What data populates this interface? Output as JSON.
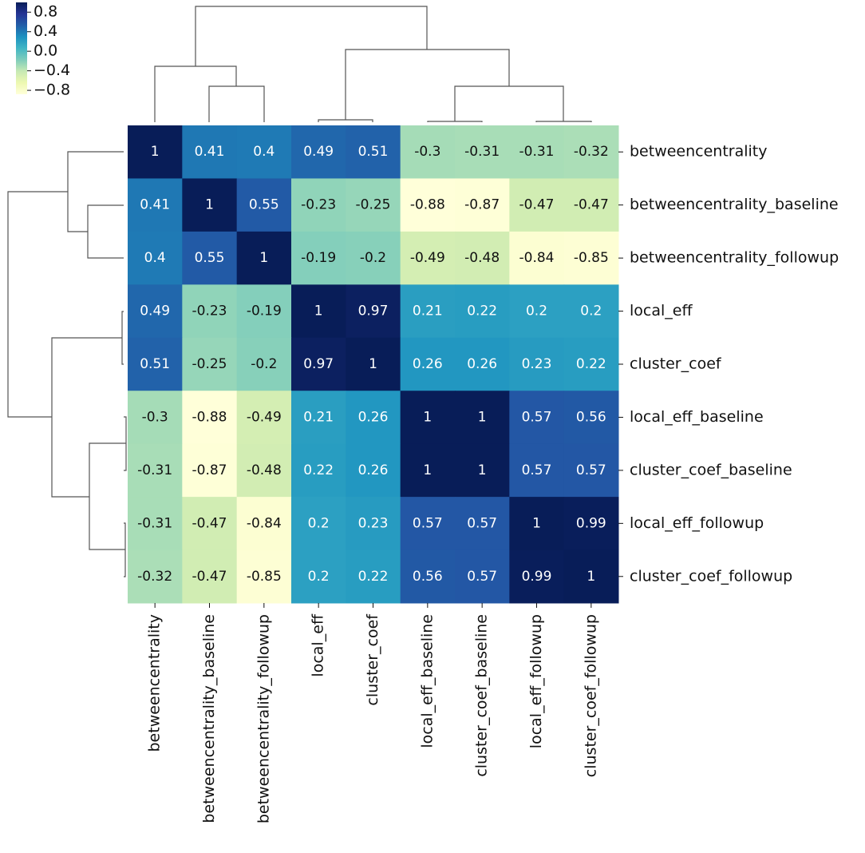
{
  "chart_data": {
    "type": "heatmap",
    "colormap": "YlGnBu",
    "categories": [
      "betweencentrality",
      "betweencentrality_baseline",
      "betweencentrality_followup",
      "local_eff",
      "cluster_coef",
      "local_eff_baseline",
      "cluster_coef_baseline",
      "local_eff_followup",
      "cluster_coef_followup"
    ],
    "values": [
      [
        1,
        0.41,
        0.4,
        0.49,
        0.51,
        -0.3,
        -0.31,
        -0.31,
        -0.32
      ],
      [
        0.41,
        1,
        0.55,
        -0.23,
        -0.25,
        -0.88,
        -0.87,
        -0.47,
        -0.47
      ],
      [
        0.4,
        0.55,
        1,
        -0.19,
        -0.2,
        -0.49,
        -0.48,
        -0.84,
        -0.85
      ],
      [
        0.49,
        -0.23,
        -0.19,
        1,
        0.97,
        0.21,
        0.22,
        0.2,
        0.2
      ],
      [
        0.51,
        -0.25,
        -0.2,
        0.97,
        1,
        0.26,
        0.26,
        0.23,
        0.22
      ],
      [
        -0.3,
        -0.88,
        -0.49,
        0.21,
        0.26,
        1,
        1,
        0.57,
        0.56
      ],
      [
        -0.31,
        -0.87,
        -0.48,
        0.22,
        0.26,
        1,
        1,
        0.57,
        0.57
      ],
      [
        -0.31,
        -0.47,
        -0.84,
        0.2,
        0.23,
        0.57,
        0.57,
        1,
        0.99
      ],
      [
        -0.32,
        -0.47,
        -0.85,
        0.2,
        0.22,
        0.56,
        0.57,
        0.99,
        1
      ]
    ],
    "clim": [
      -0.88,
      1
    ],
    "cticks": [
      0.8,
      0.4,
      {
        "value": 0,
        "label": "0.0"
      },
      {
        "value": -0.4,
        "label": "−0.4"
      },
      {
        "value": -0.8,
        "label": "−0.8"
      }
    ]
  }
}
